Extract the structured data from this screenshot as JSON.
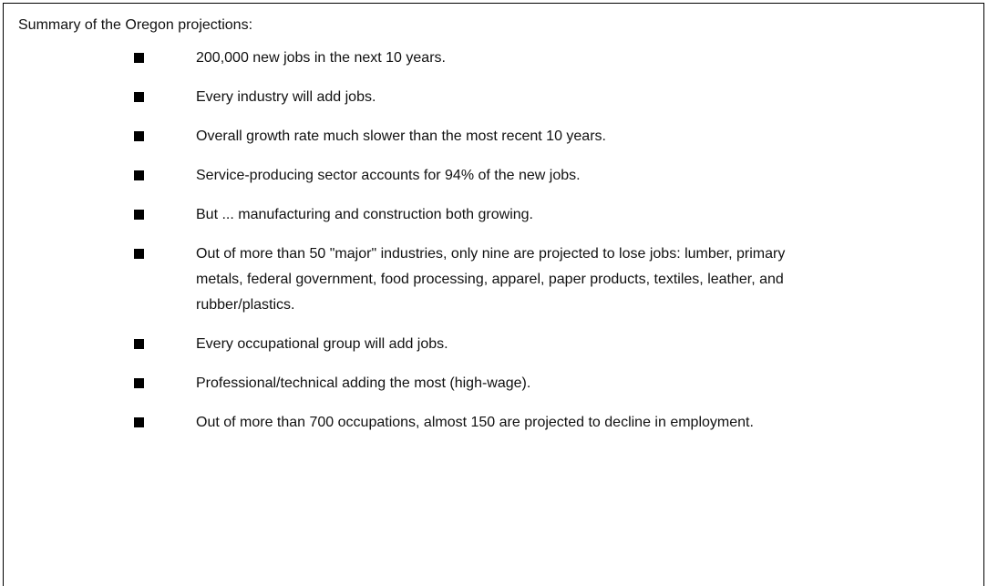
{
  "title": "Summary of the Oregon projections:",
  "items": [
    "200,000 new jobs in the next 10 years.",
    "Every industry will add jobs.",
    "Overall growth rate much slower than the most recent 10 years.",
    "Service-producing sector accounts for 94% of the new jobs.",
    "But ... manufacturing and construction both growing.",
    "Out of more than 50 \"major\" industries, only nine are projected to lose jobs: lumber, primary metals, federal government, food processing, apparel, paper products, textiles, leather, and rubber/plastics.",
    "Every occupational group will add jobs.",
    "Professional/technical adding the most (high-wage).",
    "Out of more than 700 occupations, almost 150 are projected to decline in employment."
  ]
}
